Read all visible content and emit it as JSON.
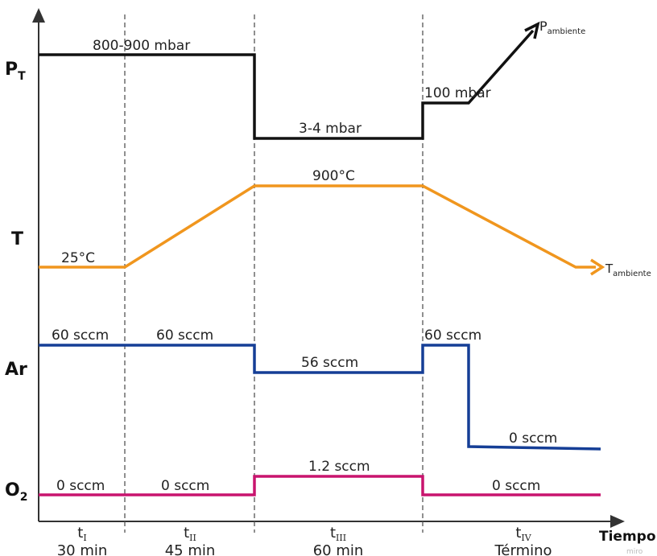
{
  "y_axis_labels": {
    "pt_main": "P",
    "pt_sub": "T",
    "t": "T",
    "ar": "Ar",
    "o2_main": "O",
    "o2_sub": "2"
  },
  "x_axis_label": "Tiempo",
  "watermark": "miro",
  "colors": {
    "pressure": "#111111",
    "temperature": "#f0961e",
    "argon": "#153e96",
    "oxygen": "#c8146e",
    "axis": "#333333"
  },
  "phases": [
    {
      "symbol": "t",
      "sub": "I",
      "duration": "30 min"
    },
    {
      "symbol": "t",
      "sub": "II",
      "duration": "45 min"
    },
    {
      "symbol": "t",
      "sub": "III",
      "duration": "60 min"
    },
    {
      "symbol": "t",
      "sub": "IV",
      "duration": "Término"
    }
  ],
  "pressure": {
    "initial": "800-900 mbar",
    "low": "3-4 mbar",
    "vent": "100 mbar",
    "end_main": "P",
    "end_sub": "ambiente"
  },
  "temperature": {
    "start": "25°C",
    "plateau": "900°C",
    "end_main": "T",
    "end_sub": "ambiente"
  },
  "argon": {
    "phase1": "60 sccm",
    "phase2": "60 sccm",
    "phase3": "56 sccm",
    "phase4": "60 sccm",
    "off": "0 sccm"
  },
  "oxygen": {
    "phase1": "0 sccm",
    "phase2": "0 sccm",
    "phase3": "1.2 sccm",
    "phase4": "0 sccm"
  }
}
